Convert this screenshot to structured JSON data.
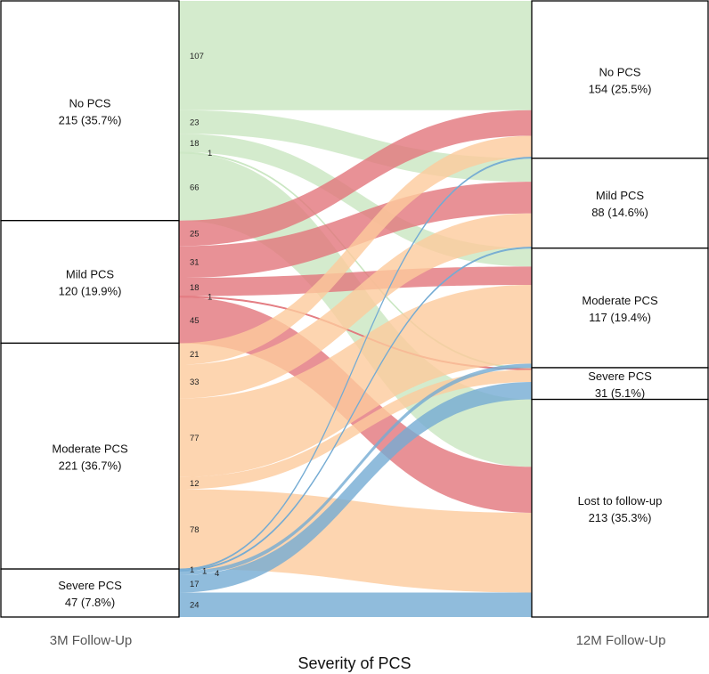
{
  "chart_data": {
    "type": "sankey",
    "title": "Severity of PCS",
    "left_axis_label": "3M Follow-Up",
    "right_axis_label": "12M Follow-Up",
    "left_nodes": [
      {
        "id": "no",
        "label": "No PCS",
        "value_label": "215 (35.7%)",
        "value": 215,
        "color": "#c9e6c1"
      },
      {
        "id": "mild",
        "label": "Mild PCS",
        "value_label": "120 (19.9%)",
        "value": 120,
        "color": "#e2767c"
      },
      {
        "id": "moderate",
        "label": "Moderate PCS",
        "value_label": "221 (36.7%)",
        "value": 221,
        "color": "#fccb9c"
      },
      {
        "id": "severe",
        "label": "Severe PCS",
        "value_label": "47 (7.8%)",
        "value": 47,
        "color": "#74abd3"
      }
    ],
    "right_nodes": [
      {
        "id": "no",
        "label": "No PCS",
        "value_label": "154 (25.5%)",
        "value": 154
      },
      {
        "id": "mild",
        "label": "Mild PCS",
        "value_label": "88 (14.6%)",
        "value": 88
      },
      {
        "id": "moderate",
        "label": "Moderate PCS",
        "value_label": "117 (19.4%)",
        "value": 117
      },
      {
        "id": "severe",
        "label": "Severe PCS",
        "value_label": "31 (5.1%)",
        "value": 31
      },
      {
        "id": "lost",
        "label": "Lost to follow-up",
        "value_label": "213 (35.3%)",
        "value": 213
      }
    ],
    "flows": [
      {
        "from": "no",
        "to": "no",
        "value": 107
      },
      {
        "from": "no",
        "to": "mild",
        "value": 23
      },
      {
        "from": "no",
        "to": "moderate",
        "value": 18
      },
      {
        "from": "no",
        "to": "severe",
        "value": 1
      },
      {
        "from": "no",
        "to": "lost",
        "value": 66
      },
      {
        "from": "mild",
        "to": "no",
        "value": 25
      },
      {
        "from": "mild",
        "to": "mild",
        "value": 31
      },
      {
        "from": "mild",
        "to": "moderate",
        "value": 18
      },
      {
        "from": "mild",
        "to": "severe",
        "value": 1
      },
      {
        "from": "mild",
        "to": "lost",
        "value": 45
      },
      {
        "from": "moderate",
        "to": "no",
        "value": 21
      },
      {
        "from": "moderate",
        "to": "mild",
        "value": 33
      },
      {
        "from": "moderate",
        "to": "moderate",
        "value": 77
      },
      {
        "from": "moderate",
        "to": "severe",
        "value": 12
      },
      {
        "from": "moderate",
        "to": "lost",
        "value": 78
      },
      {
        "from": "severe",
        "to": "no",
        "value": 1
      },
      {
        "from": "severe",
        "to": "mild",
        "value": 1
      },
      {
        "from": "severe",
        "to": "moderate",
        "value": 4
      },
      {
        "from": "severe",
        "to": "severe",
        "value": 17
      },
      {
        "from": "severe",
        "to": "lost",
        "value": 24
      }
    ]
  }
}
